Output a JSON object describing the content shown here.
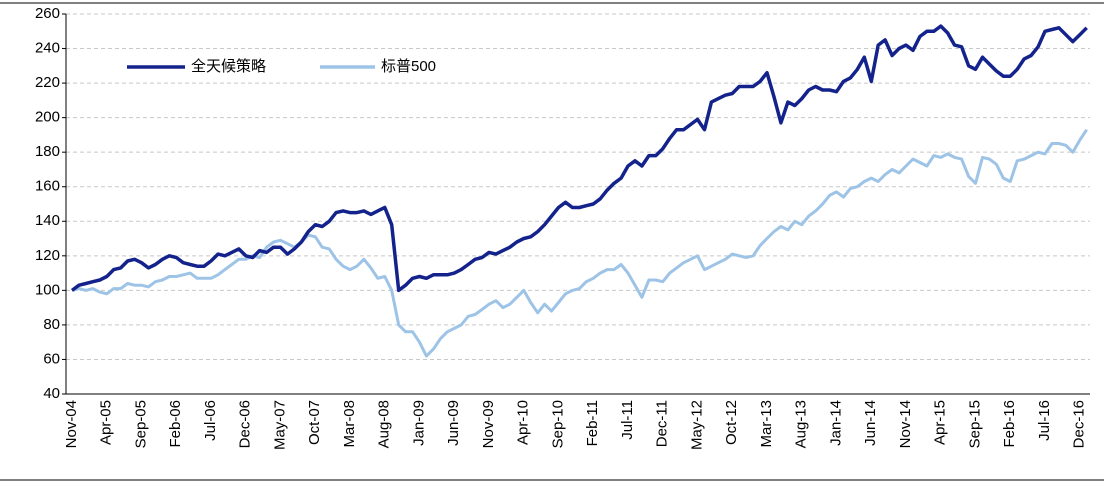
{
  "chart_data": {
    "type": "line",
    "categories": [
      "Nov-04",
      null,
      null,
      null,
      null,
      "Apr-05",
      null,
      null,
      null,
      null,
      "Sep-05",
      null,
      null,
      null,
      null,
      "Feb-06",
      null,
      null,
      null,
      null,
      "Jul-06",
      null,
      null,
      null,
      null,
      "Dec-06",
      null,
      null,
      null,
      null,
      "May-07",
      null,
      null,
      null,
      null,
      "Oct-07",
      null,
      null,
      null,
      null,
      "Mar-08",
      null,
      null,
      null,
      null,
      "Aug-08",
      null,
      null,
      null,
      null,
      "Jan-09",
      null,
      null,
      null,
      null,
      "Jun-09",
      null,
      null,
      null,
      null,
      "Nov-09",
      null,
      null,
      null,
      null,
      "Apr-10",
      null,
      null,
      null,
      null,
      "Sep-10",
      null,
      null,
      null,
      null,
      "Feb-11",
      null,
      null,
      null,
      null,
      "Jul-11",
      null,
      null,
      null,
      null,
      "Dec-11",
      null,
      null,
      null,
      null,
      "May-12",
      null,
      null,
      null,
      null,
      "Oct-12",
      null,
      null,
      null,
      null,
      "Mar-13",
      null,
      null,
      null,
      null,
      "Aug-13",
      null,
      null,
      null,
      null,
      "Jan-14",
      null,
      null,
      null,
      null,
      "Jun-14",
      null,
      null,
      null,
      null,
      "Nov-14",
      null,
      null,
      null,
      null,
      "Apr-15",
      null,
      null,
      null,
      null,
      "Sep-15",
      null,
      null,
      null,
      null,
      "Feb-16",
      null,
      null,
      null,
      null,
      "Jul-16",
      null,
      null,
      null,
      null,
      "Dec-16",
      null
    ],
    "series": [
      {
        "name": "全天候策略",
        "color": "#14238c",
        "values": [
          100,
          103,
          104,
          105,
          106,
          108,
          112,
          113,
          117,
          118,
          116,
          113,
          115,
          118,
          120,
          119,
          116,
          115,
          114,
          114,
          117,
          121,
          120,
          122,
          124,
          120,
          119,
          123,
          122,
          125,
          125,
          121,
          124,
          128,
          134,
          138,
          137,
          140,
          145,
          146,
          145,
          145,
          146,
          144,
          146,
          148,
          138,
          100,
          103,
          107,
          108,
          107,
          109,
          109,
          109,
          110,
          112,
          115,
          118,
          119,
          122,
          121,
          123,
          125,
          128,
          130,
          131,
          134,
          138,
          143,
          148,
          151,
          148,
          148,
          149,
          150,
          153,
          158,
          162,
          165,
          172,
          175,
          172,
          178,
          178,
          182,
          188,
          193,
          193,
          196,
          199,
          193,
          209,
          211,
          213,
          214,
          218,
          218,
          218,
          221,
          226,
          212,
          197,
          209,
          207,
          211,
          216,
          218,
          216,
          216,
          215,
          221,
          223,
          228,
          235,
          221,
          242,
          245,
          236,
          240,
          242,
          239,
          247,
          250,
          250,
          253,
          249,
          242,
          241,
          230,
          228,
          235,
          231,
          227,
          224,
          224,
          228,
          234,
          236,
          241,
          250,
          251,
          252,
          248,
          244,
          248,
          252
        ]
      },
      {
        "name": "标普500",
        "color": "#9dc3e6",
        "values": [
          100,
          101,
          100,
          101,
          99,
          98,
          101,
          101,
          104,
          103,
          103,
          102,
          105,
          106,
          108,
          108,
          109,
          110,
          107,
          107,
          107,
          109,
          112,
          115,
          118,
          118,
          120,
          119,
          125,
          128,
          129,
          127,
          125,
          128,
          132,
          131,
          125,
          124,
          118,
          114,
          112,
          114,
          118,
          113,
          107,
          108,
          100,
          80,
          76,
          76,
          70,
          62,
          66,
          72,
          76,
          78,
          80,
          85,
          86,
          89,
          92,
          94,
          90,
          92,
          96,
          100,
          93,
          87,
          92,
          88,
          93,
          98,
          100,
          101,
          105,
          107,
          110,
          112,
          112,
          115,
          110,
          103,
          96,
          106,
          106,
          105,
          110,
          113,
          116,
          118,
          120,
          112,
          114,
          116,
          118,
          121,
          120,
          119,
          120,
          126,
          130,
          134,
          137,
          135,
          140,
          138,
          143,
          146,
          150,
          155,
          157,
          154,
          159,
          160,
          163,
          165,
          163,
          167,
          170,
          168,
          172,
          176,
          174,
          172,
          178,
          177,
          179,
          177,
          176,
          166,
          162,
          177,
          176,
          173,
          165,
          163,
          175,
          176,
          178,
          180,
          179,
          185,
          185,
          184,
          180,
          187,
          193
        ]
      }
    ],
    "ylim": [
      40,
      260
    ],
    "yticks": [
      40,
      60,
      80,
      100,
      120,
      140,
      160,
      180,
      200,
      220,
      240,
      260
    ],
    "grid": true
  }
}
